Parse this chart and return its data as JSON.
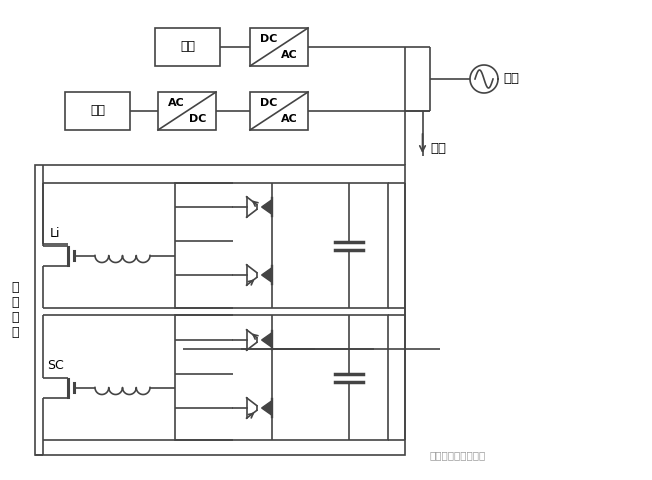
{
  "bg": "#ffffff",
  "lc": "#444444",
  "lw": 1.2,
  "fig_w": 6.52,
  "fig_h": 4.8,
  "dpi": 100,
  "font": "SimHei",
  "labels": {
    "dy1": "电源",
    "dy2": "电源",
    "dcac1_t": "DC",
    "dcac1_b": "AC",
    "acdc_t": "AC",
    "acdc_b": "DC",
    "dcac2_t": "DC",
    "dcac2_b": "AC",
    "weiwang": "微网",
    "fuhe": "负荷",
    "li": "Li",
    "sc": "SC",
    "chuneng": "储\n能\n系\n统",
    "watermark": "分布式发电与微电网"
  }
}
